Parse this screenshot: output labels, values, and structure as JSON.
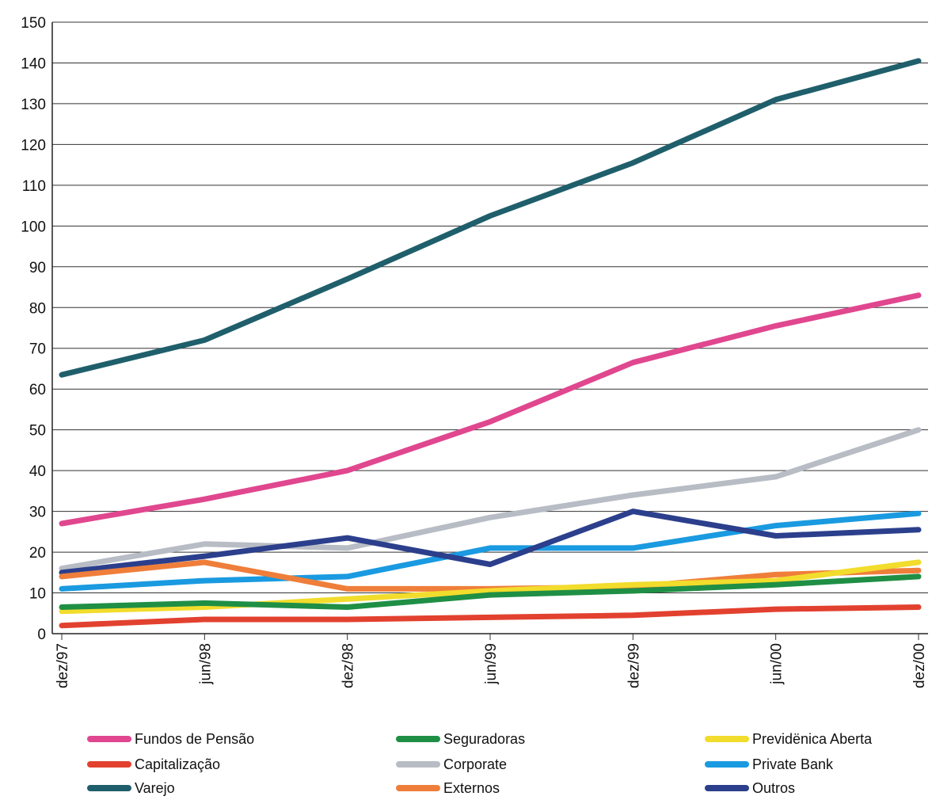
{
  "chart_data": {
    "type": "line",
    "title": "",
    "xlabel": "",
    "ylabel": "",
    "ylim": [
      0,
      150
    ],
    "yticks": [
      "0",
      "10",
      "20",
      "30",
      "40",
      "50",
      "60",
      "70",
      "80",
      "90",
      "100",
      "110",
      "120",
      "130",
      "140",
      "150"
    ],
    "categories": [
      "dez/97",
      "jun/98",
      "dez/98",
      "jun/99",
      "dez/99",
      "jun/00",
      "dez/00"
    ],
    "grid": true,
    "legend_position": "bottom",
    "series": [
      {
        "name": "Varejo",
        "color": "#1f5f6b",
        "values": [
          63.5,
          72,
          87,
          102.5,
          115.5,
          131,
          140.5
        ]
      },
      {
        "name": "Fundos de Pensão",
        "color": "#e0478f",
        "values": [
          27,
          33,
          40,
          52,
          66.5,
          75.5,
          83
        ]
      },
      {
        "name": "Corporate",
        "color": "#b8bcc4",
        "values": [
          16,
          22,
          21,
          28.5,
          34,
          38.5,
          50
        ]
      },
      {
        "name": "Private Bank",
        "color": "#1a9ae0",
        "values": [
          11,
          13,
          14,
          21,
          21,
          26.5,
          29.5
        ]
      },
      {
        "name": "Outros",
        "color": "#2b3f8c",
        "values": [
          15,
          19,
          23.5,
          17,
          30,
          24,
          25.5
        ]
      },
      {
        "name": "Externos",
        "color": "#ef7e3a",
        "values": [
          14,
          17.5,
          11,
          11,
          11.5,
          14.5,
          15.5
        ]
      },
      {
        "name": "Previdënica Aberta",
        "color": "#f2dc2c",
        "values": [
          5.5,
          6.5,
          8.5,
          10.5,
          12,
          13,
          17.5
        ]
      },
      {
        "name": "Seguradoras",
        "color": "#1f8f45",
        "values": [
          6.5,
          7.5,
          6.5,
          9.5,
          10.5,
          12,
          14
        ]
      },
      {
        "name": "Capitalização",
        "color": "#e2412f",
        "values": [
          2,
          3.5,
          3.5,
          4,
          4.5,
          6,
          6.5
        ]
      }
    ],
    "legend": [
      {
        "label": "Fundos de Pensão",
        "color": "#e0478f"
      },
      {
        "label": "Seguradoras",
        "color": "#1f8f45"
      },
      {
        "label": "Previdënica Aberta",
        "color": "#f2dc2c"
      },
      {
        "label": "Capitalização",
        "color": "#e2412f"
      },
      {
        "label": "Corporate",
        "color": "#b8bcc4"
      },
      {
        "label": "Private Bank",
        "color": "#1a9ae0"
      },
      {
        "label": "Varejo",
        "color": "#1f5f6b"
      },
      {
        "label": "Externos",
        "color": "#ef7e3a"
      },
      {
        "label": "Outros",
        "color": "#2b3f8c"
      }
    ]
  }
}
